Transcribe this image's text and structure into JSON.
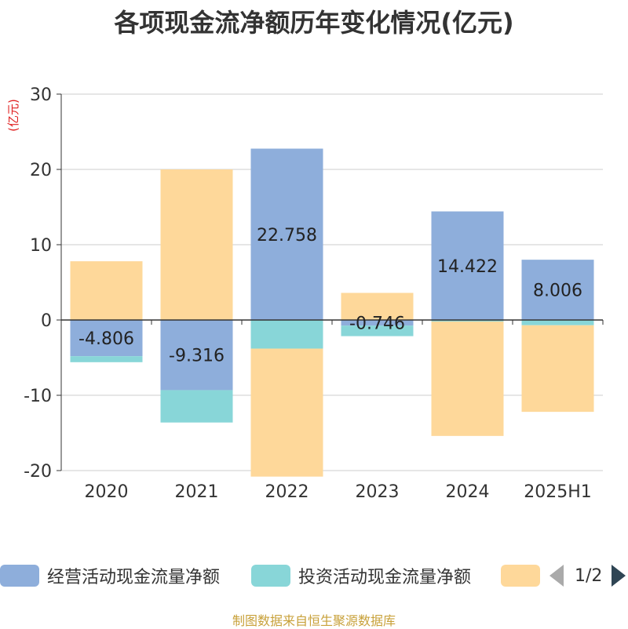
{
  "chart_data": {
    "type": "bar",
    "stacked": true,
    "title": "各项现金流净额历年变化情况(亿元)",
    "ylabel": "(亿元)",
    "ylim": [
      -20,
      30
    ],
    "yticks": [
      30,
      20,
      10,
      0,
      -10,
      -20
    ],
    "categories": [
      "2020",
      "2021",
      "2022",
      "2023",
      "2024",
      "2025H1"
    ],
    "series": [
      {
        "name": "经营活动现金流量净额",
        "color": "#8eaedb",
        "values": [
          -4.806,
          -9.316,
          22.758,
          -0.746,
          14.422,
          8.006
        ]
      },
      {
        "name": "投资活动现金流量净额",
        "color": "#88d6d8",
        "values": [
          -0.8,
          -4.3,
          -3.8,
          -1.4,
          -0.2,
          -0.7
        ]
      },
      {
        "name": "",
        "color": "#fed89a",
        "values": [
          7.8,
          20.0,
          -17.0,
          3.6,
          -15.2,
          -11.5
        ]
      }
    ],
    "data_labels": [
      "-4.806",
      "-9.316",
      "22.758",
      "-0.746",
      "14.422",
      "8.006"
    ],
    "grid": true,
    "legend_position": "bottom"
  },
  "legend": {
    "page_text": "1/2"
  },
  "source_note": "制图数据来自恒生聚源数据库"
}
